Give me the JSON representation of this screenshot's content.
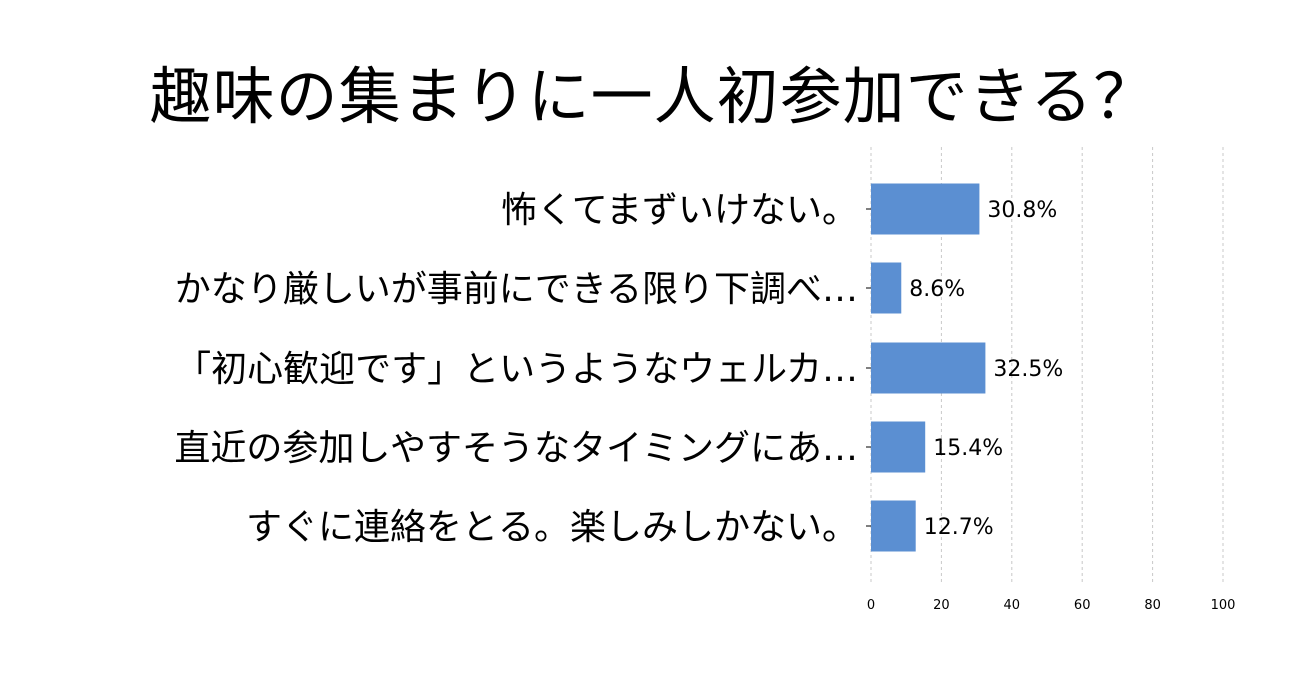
{
  "chart_data": {
    "type": "bar",
    "orientation": "horizontal",
    "title": "趣味の集まりに一人初参加できる？",
    "categories": [
      "怖くてまずいけない。",
      "かなり厳しいが事前にできる限り下調べ…",
      "「初心歓迎です」というようなウェルカ…",
      "直近の参加しやすそうなタイミングにあ…",
      "すぐに連絡をとる。楽しみしかない。"
    ],
    "values": [
      30.8,
      8.6,
      32.5,
      15.4,
      12.7
    ],
    "value_labels": [
      "30.8%",
      "8.6%",
      "32.5%",
      "15.4%",
      "12.7%"
    ],
    "xlim": [
      0,
      100
    ],
    "xticks": [
      0,
      20,
      40,
      60,
      80,
      100
    ],
    "grid": "vertical dashed",
    "bar_color": "#5b8fd2"
  }
}
